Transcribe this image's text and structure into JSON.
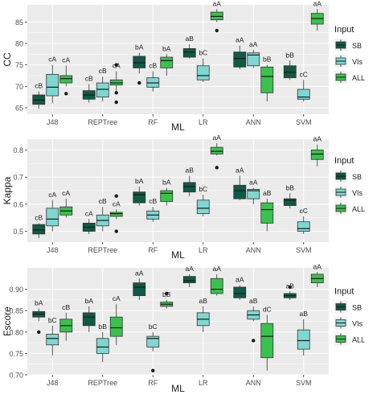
{
  "colors": {
    "panel_bg": "#ebebeb",
    "grid": "#ffffff",
    "text": "#333333",
    "series": {
      "SB": "#0f5a45",
      "VIs": "#7fd8cf",
      "ALL": "#39c24d"
    }
  },
  "chart_data": [
    {
      "type": "box",
      "ylabel": "CC",
      "xlabel": "ML",
      "ylim": [
        63.5,
        89
      ],
      "yticks": [
        "65",
        "70",
        "75",
        "80",
        "85"
      ],
      "ytick_values": [
        65,
        70,
        75,
        80,
        85
      ],
      "categories": [
        "J48",
        "REPTree",
        "RF",
        "LR",
        "ANN",
        "SVM"
      ],
      "legend": {
        "title": "Input",
        "entries": [
          "SB",
          "VIs",
          "ALL"
        ]
      },
      "boxes": [
        {
          "category": "J48",
          "series": "SB",
          "min": 64.8,
          "q1": 65.8,
          "median": 66.8,
          "q3": 68.0,
          "max": 68.8,
          "outliers": [],
          "label": "cB"
        },
        {
          "category": "J48",
          "series": "VIs",
          "min": 66.2,
          "q1": 67.8,
          "median": 69.8,
          "q3": 72.8,
          "max": 75.0,
          "outliers": [],
          "label": "cA"
        },
        {
          "category": "J48",
          "series": "ALL",
          "min": 70.0,
          "q1": 70.8,
          "median": 71.8,
          "q3": 72.5,
          "max": 74.8,
          "outliers": [
            68.3
          ],
          "label": "cA"
        },
        {
          "category": "REPTree",
          "series": "SB",
          "min": 66.2,
          "q1": 67.0,
          "median": 68.0,
          "q3": 69.0,
          "max": 70.5,
          "outliers": [],
          "label": "cB"
        },
        {
          "category": "REPTree",
          "series": "VIs",
          "min": 66.5,
          "q1": 67.5,
          "median": 69.3,
          "q3": 70.8,
          "max": 72.3,
          "outliers": [],
          "label": "cB"
        },
        {
          "category": "REPTree",
          "series": "ALL",
          "min": 69.0,
          "q1": 70.3,
          "median": 70.8,
          "q3": 71.5,
          "max": 73.5,
          "outliers": [
            75.0,
            68.5,
            66.3
          ],
          "label": "cA"
        },
        {
          "category": "RF",
          "series": "SB",
          "min": 73.0,
          "q1": 74.3,
          "median": 75.5,
          "q3": 77.0,
          "max": 77.8,
          "outliers": [
            70.8
          ],
          "label": "bA"
        },
        {
          "category": "RF",
          "series": "VIs",
          "min": 68.8,
          "q1": 69.8,
          "median": 70.8,
          "q3": 72.0,
          "max": 73.5,
          "outliers": [],
          "label": "cB"
        },
        {
          "category": "RF",
          "series": "ALL",
          "min": 72.5,
          "q1": 74.3,
          "median": 76.0,
          "q3": 76.8,
          "max": 77.5,
          "outliers": [],
          "label": "bA"
        },
        {
          "category": "LR",
          "series": "SB",
          "min": 76.5,
          "q1": 76.8,
          "median": 78.0,
          "q3": 78.8,
          "max": 79.8,
          "outliers": [],
          "label": "aB"
        },
        {
          "category": "LR",
          "series": "VIs",
          "min": 71.0,
          "q1": 71.5,
          "median": 72.5,
          "q3": 74.8,
          "max": 76.5,
          "outliers": [],
          "label": "bC"
        },
        {
          "category": "LR",
          "series": "ALL",
          "min": 85.0,
          "q1": 85.5,
          "median": 86.3,
          "q3": 87.3,
          "max": 88.0,
          "outliers": [
            83.0
          ],
          "label": "aA"
        },
        {
          "category": "ANN",
          "series": "SB",
          "min": 74.0,
          "q1": 74.5,
          "median": 76.5,
          "q3": 78.0,
          "max": 79.5,
          "outliers": [],
          "label": "aA"
        },
        {
          "category": "ANN",
          "series": "VIs",
          "min": 74.3,
          "q1": 74.8,
          "median": 77.3,
          "q3": 77.8,
          "max": 78.5,
          "outliers": [],
          "label": "aA"
        },
        {
          "category": "ANN",
          "series": "ALL",
          "min": 66.5,
          "q1": 68.5,
          "median": 72.3,
          "q3": 74.5,
          "max": 75.0,
          "outliers": [],
          "label": "bB"
        },
        {
          "category": "SVM",
          "series": "SB",
          "min": 71.5,
          "q1": 72.0,
          "median": 73.3,
          "q3": 74.8,
          "max": 76.0,
          "outliers": [],
          "label": "bB"
        },
        {
          "category": "SVM",
          "series": "VIs",
          "min": 66.5,
          "q1": 67.0,
          "median": 67.5,
          "q3": 69.3,
          "max": 71.5,
          "outliers": [],
          "label": "cC"
        },
        {
          "category": "SVM",
          "series": "ALL",
          "min": 83.0,
          "q1": 84.5,
          "median": 85.8,
          "q3": 87.0,
          "max": 88.0,
          "outliers": [],
          "label": "aA"
        }
      ]
    },
    {
      "type": "box",
      "ylabel": "Kappa",
      "xlabel": "ML",
      "ylim": [
        0.46,
        0.84
      ],
      "yticks": [
        "0.5",
        "0.6",
        "0.7",
        "0.8"
      ],
      "ytick_values": [
        0.5,
        0.6,
        0.7,
        0.8
      ],
      "categories": [
        "J48",
        "REPTree",
        "RF",
        "LR",
        "ANN",
        "SVM"
      ],
      "legend": {
        "title": "Input",
        "entries": [
          "SB",
          "VIs",
          "ALL"
        ]
      },
      "boxes": [
        {
          "category": "J48",
          "series": "SB",
          "min": 0.475,
          "q1": 0.49,
          "median": 0.505,
          "q3": 0.525,
          "max": 0.53,
          "outliers": [],
          "label": "cB"
        },
        {
          "category": "J48",
          "series": "VIs",
          "min": 0.5,
          "q1": 0.52,
          "median": 0.545,
          "q3": 0.585,
          "max": 0.615,
          "outliers": [],
          "label": "cA"
        },
        {
          "category": "J48",
          "series": "ALL",
          "min": 0.55,
          "q1": 0.56,
          "median": 0.575,
          "q3": 0.59,
          "max": 0.62,
          "outliers": [],
          "label": "cA"
        },
        {
          "category": "REPTree",
          "series": "SB",
          "min": 0.49,
          "q1": 0.5,
          "median": 0.515,
          "q3": 0.53,
          "max": 0.545,
          "outliers": [],
          "label": "cA"
        },
        {
          "category": "REPTree",
          "series": "VIs",
          "min": 0.5,
          "q1": 0.52,
          "median": 0.54,
          "q3": 0.56,
          "max": 0.59,
          "outliers": [],
          "label": "cB"
        },
        {
          "category": "REPTree",
          "series": "ALL",
          "min": 0.545,
          "q1": 0.555,
          "median": 0.565,
          "q3": 0.57,
          "max": 0.58,
          "outliers": [
            0.63,
            0.5
          ],
          "label": "cA"
        },
        {
          "category": "RF",
          "series": "SB",
          "min": 0.595,
          "q1": 0.605,
          "median": 0.635,
          "q3": 0.645,
          "max": 0.665,
          "outliers": [],
          "label": "bA"
        },
        {
          "category": "RF",
          "series": "VIs",
          "min": 0.535,
          "q1": 0.545,
          "median": 0.56,
          "q3": 0.575,
          "max": 0.59,
          "outliers": [],
          "label": "cB"
        },
        {
          "category": "RF",
          "series": "ALL",
          "min": 0.595,
          "q1": 0.61,
          "median": 0.64,
          "q3": 0.65,
          "max": 0.66,
          "outliers": [],
          "label": "bA"
        },
        {
          "category": "LR",
          "series": "SB",
          "min": 0.63,
          "q1": 0.645,
          "median": 0.665,
          "q3": 0.68,
          "max": 0.705,
          "outliers": [],
          "label": "aB"
        },
        {
          "category": "LR",
          "series": "VIs",
          "min": 0.555,
          "q1": 0.565,
          "median": 0.585,
          "q3": 0.615,
          "max": 0.635,
          "outliers": [],
          "label": "bC"
        },
        {
          "category": "LR",
          "series": "ALL",
          "min": 0.78,
          "q1": 0.785,
          "median": 0.795,
          "q3": 0.81,
          "max": 0.825,
          "outliers": [
            0.735
          ],
          "label": "aA"
        },
        {
          "category": "ANN",
          "series": "SB",
          "min": 0.615,
          "q1": 0.62,
          "median": 0.65,
          "q3": 0.67,
          "max": 0.705,
          "outliers": [],
          "label": "aA"
        },
        {
          "category": "ANN",
          "series": "VIs",
          "min": 0.6,
          "q1": 0.62,
          "median": 0.65,
          "q3": 0.655,
          "max": 0.66,
          "outliers": [],
          "label": "aA"
        },
        {
          "category": "ANN",
          "series": "ALL",
          "min": 0.5,
          "q1": 0.53,
          "median": 0.58,
          "q3": 0.605,
          "max": 0.62,
          "outliers": [],
          "label": "aB"
        },
        {
          "category": "SVM",
          "series": "SB",
          "min": 0.585,
          "q1": 0.595,
          "median": 0.615,
          "q3": 0.62,
          "max": 0.64,
          "outliers": [],
          "label": "bB"
        },
        {
          "category": "SVM",
          "series": "VIs",
          "min": 0.49,
          "q1": 0.5,
          "median": 0.51,
          "q3": 0.535,
          "max": 0.555,
          "outliers": [],
          "label": "cC"
        },
        {
          "category": "SVM",
          "series": "ALL",
          "min": 0.74,
          "q1": 0.765,
          "median": 0.785,
          "q3": 0.8,
          "max": 0.82,
          "outliers": [],
          "label": "aA"
        }
      ]
    },
    {
      "type": "box",
      "ylabel": "Fscore",
      "xlabel": "ML",
      "ylim": [
        0.7,
        0.95
      ],
      "yticks": [
        "0.70",
        "0.75",
        "0.80",
        "0.85",
        "0.90"
      ],
      "ytick_values": [
        0.7,
        0.75,
        0.8,
        0.85,
        0.9
      ],
      "categories": [
        "J48",
        "REPTree",
        "RF",
        "LR",
        "ANN",
        "SVM"
      ],
      "legend": {
        "title": "Input",
        "entries": [
          "SB",
          "VIs",
          "ALL"
        ]
      },
      "boxes": [
        {
          "category": "J48",
          "series": "SB",
          "min": 0.825,
          "q1": 0.835,
          "median": 0.842,
          "q3": 0.848,
          "max": 0.855,
          "outliers": [
            0.8
          ],
          "label": "bA"
        },
        {
          "category": "J48",
          "series": "VIs",
          "min": 0.745,
          "q1": 0.77,
          "median": 0.785,
          "q3": 0.795,
          "max": 0.815,
          "outliers": [],
          "label": "bC"
        },
        {
          "category": "J48",
          "series": "ALL",
          "min": 0.78,
          "q1": 0.8,
          "median": 0.815,
          "q3": 0.83,
          "max": 0.845,
          "outliers": [],
          "label": "cB"
        },
        {
          "category": "REPTree",
          "series": "SB",
          "min": 0.8,
          "q1": 0.815,
          "median": 0.835,
          "q3": 0.845,
          "max": 0.86,
          "outliers": [],
          "label": "bA"
        },
        {
          "category": "REPTree",
          "series": "VIs",
          "min": 0.73,
          "q1": 0.75,
          "median": 0.765,
          "q3": 0.785,
          "max": 0.8,
          "outliers": [],
          "label": "bB"
        },
        {
          "category": "REPTree",
          "series": "ALL",
          "min": 0.77,
          "q1": 0.79,
          "median": 0.81,
          "q3": 0.835,
          "max": 0.865,
          "outliers": [],
          "label": "cA"
        },
        {
          "category": "RF",
          "series": "SB",
          "min": 0.875,
          "q1": 0.885,
          "median": 0.905,
          "q3": 0.915,
          "max": 0.925,
          "outliers": [],
          "label": "aA"
        },
        {
          "category": "RF",
          "series": "VIs",
          "min": 0.755,
          "q1": 0.765,
          "median": 0.785,
          "q3": 0.79,
          "max": 0.8,
          "outliers": [
            0.71
          ],
          "label": "bC"
        },
        {
          "category": "RF",
          "series": "ALL",
          "min": 0.855,
          "q1": 0.86,
          "median": 0.865,
          "q3": 0.87,
          "max": 0.875,
          "outliers": [
            0.89
          ],
          "label": "bB"
        },
        {
          "category": "LR",
          "series": "SB",
          "min": 0.905,
          "q1": 0.915,
          "median": 0.92,
          "q3": 0.93,
          "max": 0.935,
          "outliers": [],
          "label": "aA"
        },
        {
          "category": "LR",
          "series": "VIs",
          "min": 0.8,
          "q1": 0.815,
          "median": 0.83,
          "q3": 0.845,
          "max": 0.86,
          "outliers": [],
          "label": "aB"
        },
        {
          "category": "LR",
          "series": "ALL",
          "min": 0.885,
          "q1": 0.89,
          "median": 0.9,
          "q3": 0.925,
          "max": 0.935,
          "outliers": [],
          "label": "aA"
        },
        {
          "category": "ANN",
          "series": "SB",
          "min": 0.875,
          "q1": 0.88,
          "median": 0.89,
          "q3": 0.905,
          "max": 0.91,
          "outliers": [],
          "label": "aA"
        },
        {
          "category": "ANN",
          "series": "VIs",
          "min": 0.825,
          "q1": 0.83,
          "median": 0.84,
          "q3": 0.85,
          "max": 0.86,
          "outliers": [
            0.78
          ],
          "label": "aB"
        },
        {
          "category": "ANN",
          "series": "ALL",
          "min": 0.71,
          "q1": 0.74,
          "median": 0.79,
          "q3": 0.82,
          "max": 0.84,
          "outliers": [],
          "label": "dC"
        },
        {
          "category": "SVM",
          "series": "SB",
          "min": 0.875,
          "q1": 0.88,
          "median": 0.885,
          "q3": 0.89,
          "max": 0.895,
          "outliers": [
            0.905
          ],
          "label": "aB"
        },
        {
          "category": "SVM",
          "series": "VIs",
          "min": 0.745,
          "q1": 0.76,
          "median": 0.78,
          "q3": 0.805,
          "max": 0.83,
          "outliers": [],
          "label": "aB"
        },
        {
          "category": "SVM",
          "series": "ALL",
          "min": 0.905,
          "q1": 0.915,
          "median": 0.925,
          "q3": 0.935,
          "max": 0.94,
          "outliers": [],
          "label": "aA"
        }
      ]
    }
  ]
}
